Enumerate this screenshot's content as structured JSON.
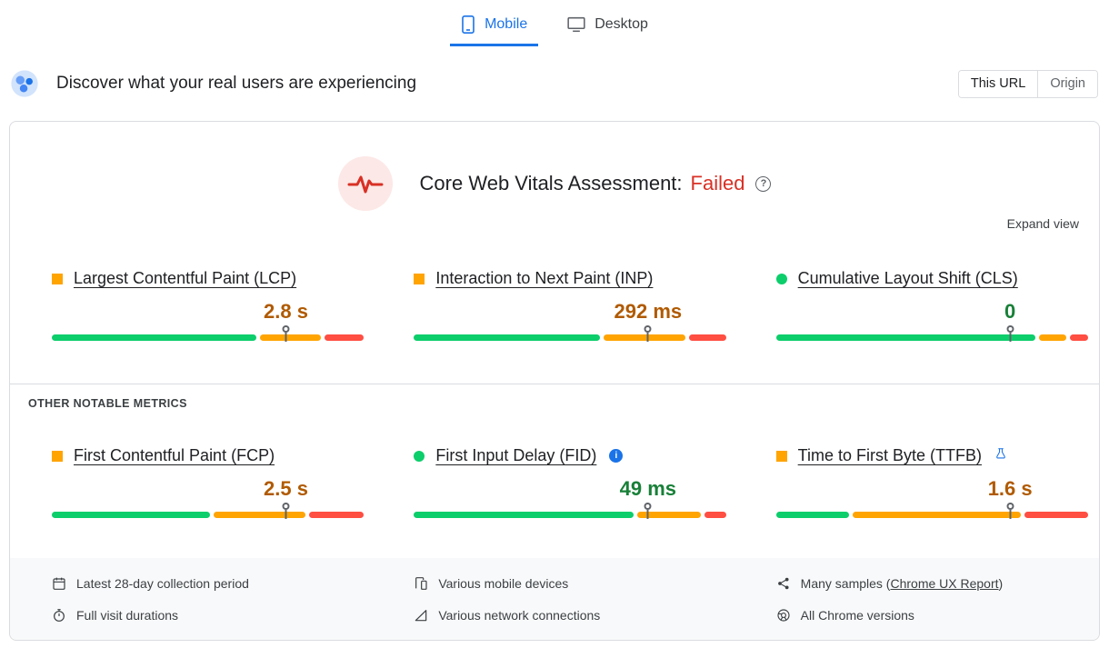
{
  "tabs": [
    {
      "label": "Mobile",
      "active": true
    },
    {
      "label": "Desktop",
      "active": false
    }
  ],
  "field_header": {
    "title": "Discover what your real users are experiencing",
    "scope_toggle": {
      "options": [
        "This URL",
        "Origin"
      ],
      "selected_index": 0
    }
  },
  "assessment": {
    "label": "Core Web Vitals Assessment:",
    "result": "Failed",
    "expand": "Expand view"
  },
  "section_label": "OTHER NOTABLE METRICS",
  "icons": {
    "help_glyph": "?",
    "info_glyph": "i"
  },
  "colors": {
    "good_bar": "#0cce6b",
    "ni_bar": "#ffa400",
    "poor_bar": "#ff4e42",
    "good_text": "#188038",
    "ni_text": "#b05a00",
    "fail": "#d93025",
    "accent": "#1a73e8"
  },
  "metrics_core": [
    {
      "name": "Largest Contentful Paint (LCP)",
      "value": "2.8 s",
      "status": "ni",
      "distribution": [
        67,
        20,
        13
      ],
      "marker_pct": 75
    },
    {
      "name": "Interaction to Next Paint (INP)",
      "value": "292 ms",
      "status": "ni",
      "distribution": [
        61,
        27,
        12
      ],
      "marker_pct": 75
    },
    {
      "name": "Cumulative Layout Shift (CLS)",
      "value": "0",
      "status": "good",
      "distribution": [
        85,
        9,
        6
      ],
      "marker_pct": 75
    }
  ],
  "metrics_other": [
    {
      "name": "First Contentful Paint (FCP)",
      "value": "2.5 s",
      "status": "ni",
      "distribution": [
        52,
        30,
        18
      ],
      "marker_pct": 75
    },
    {
      "name": "First Input Delay (FID)",
      "value": "49 ms",
      "status": "good",
      "distribution": [
        72,
        21,
        7
      ],
      "marker_pct": 75
    },
    {
      "name": "Time to First Byte (TTFB)",
      "value": "1.6 s",
      "status": "ni",
      "distribution": [
        24,
        55,
        21
      ],
      "marker_pct": 75
    }
  ],
  "footer": {
    "col1": [
      {
        "icon": "calendar-icon",
        "text": "Latest 28-day collection period"
      },
      {
        "icon": "stopwatch-icon",
        "text": "Full visit durations"
      }
    ],
    "col2": [
      {
        "icon": "devices-icon",
        "text": "Various mobile devices"
      },
      {
        "icon": "network-icon",
        "text": "Various network connections"
      }
    ],
    "col3": [
      {
        "icon": "samples-icon",
        "prefix": "Many samples (",
        "link": "Chrome UX Report",
        "suffix": ")"
      },
      {
        "icon": "chrome-icon",
        "text": "All Chrome versions"
      }
    ]
  }
}
